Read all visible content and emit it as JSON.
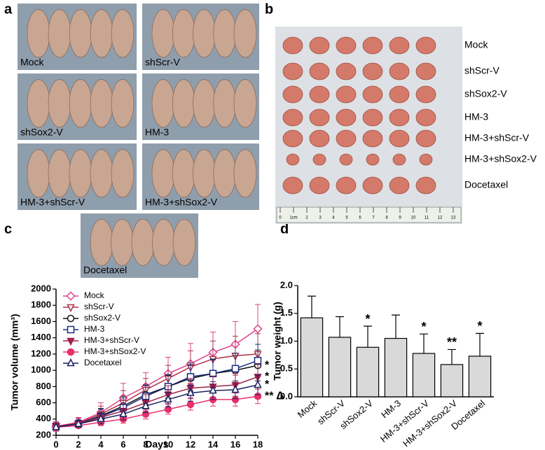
{
  "panel_labels": [
    "a",
    "b",
    "c",
    "d"
  ],
  "panel_a": {
    "groups": [
      "Mock",
      "shScr-V",
      "shSox2-V",
      "HM-3",
      "HM-3+shScr-V",
      "HM-3+shSox2-V",
      "Docetaxel"
    ]
  },
  "panel_b": {
    "groups": [
      "Mock",
      "shScr-V",
      "shSox2-V",
      "HM-3",
      "HM-3+shScr-V",
      "HM-3+shSox2-V",
      "Docetaxel"
    ],
    "ruler_labels": [
      "0",
      "1cm",
      "2",
      "3",
      "4",
      "5",
      "6",
      "7",
      "8",
      "9",
      "10",
      "11",
      "12",
      "13"
    ]
  },
  "chart_data": [
    {
      "type": "line",
      "x_label": "Days",
      "y_label": "Tumor volume (mm³)",
      "x": [
        0,
        2,
        4,
        6,
        8,
        10,
        12,
        14,
        16,
        18
      ],
      "xlim": [
        0,
        18
      ],
      "xticks": [
        0,
        2,
        4,
        6,
        8,
        10,
        12,
        14,
        16,
        18
      ],
      "ylim": [
        200,
        2000
      ],
      "yticks": [
        200,
        400,
        600,
        800,
        1000,
        1200,
        1400,
        1600,
        1800,
        2000
      ],
      "legend": "top-left",
      "series": [
        {
          "name": "Mock",
          "color": "#e0408a",
          "marker": "diamond",
          "filled": false,
          "values": [
            310,
            360,
            480,
            660,
            800,
            960,
            1080,
            1220,
            1320,
            1510
          ],
          "errors": [
            60,
            60,
            120,
            180,
            170,
            200,
            250,
            250,
            280,
            300
          ]
        },
        {
          "name": "shScr-V",
          "color": "#b0304a",
          "marker": "triangle-down",
          "filled": false,
          "values": [
            310,
            350,
            460,
            600,
            760,
            900,
            1040,
            1140,
            1180,
            1200
          ],
          "errors": [
            50,
            60,
            100,
            150,
            140,
            160,
            200,
            220,
            240,
            250
          ]
        },
        {
          "name": "shSox2-V",
          "color": "#111111",
          "marker": "circle",
          "filled": false,
          "values": [
            300,
            340,
            440,
            560,
            700,
            800,
            900,
            960,
            1000,
            1060
          ],
          "errors": [
            40,
            50,
            90,
            120,
            120,
            140,
            160,
            170,
            180,
            190
          ],
          "annotation": "*"
        },
        {
          "name": "HM-3",
          "color": "#1a2a80",
          "marker": "square",
          "filled": false,
          "values": [
            310,
            340,
            430,
            540,
            680,
            800,
            920,
            960,
            1020,
            1120
          ],
          "errors": [
            40,
            50,
            90,
            120,
            130,
            150,
            170,
            180,
            190,
            200
          ]
        },
        {
          "name": "HM-3+shScr-V",
          "color": "#a0204a",
          "marker": "triangle-down",
          "filled": true,
          "values": [
            310,
            340,
            420,
            500,
            600,
            700,
            780,
            800,
            820,
            920
          ],
          "errors": [
            40,
            40,
            70,
            90,
            100,
            110,
            120,
            130,
            140,
            150
          ],
          "annotation": "*"
        },
        {
          "name": "HM-3+shSox2-V",
          "color": "#e8306a",
          "marker": "circle",
          "filled": true,
          "values": [
            300,
            320,
            360,
            400,
            460,
            520,
            580,
            640,
            640,
            680
          ],
          "errors": [
            30,
            30,
            40,
            50,
            60,
            60,
            70,
            80,
            80,
            90
          ],
          "annotation": "** Δ"
        },
        {
          "name": "Docetaxel",
          "color": "#1a2060",
          "marker": "triangle-up",
          "filled": false,
          "values": [
            300,
            340,
            400,
            460,
            560,
            640,
            720,
            750,
            760,
            820
          ],
          "errors": [
            30,
            40,
            60,
            70,
            80,
            90,
            100,
            110,
            110,
            120
          ],
          "annotation": "*"
        }
      ]
    },
    {
      "type": "bar",
      "y_label": "Tumor weight (g)",
      "color": "#d9d9d9",
      "categories": [
        "Mock",
        "shScr-V",
        "shSox2-V",
        "HM-3",
        "HM-3+shScr-V",
        "HM-3+shSox2-V",
        "Docetaxel"
      ],
      "values": [
        1.42,
        1.07,
        0.89,
        1.05,
        0.78,
        0.58,
        0.73
      ],
      "errors": [
        0.39,
        0.37,
        0.38,
        0.42,
        0.35,
        0.27,
        0.41
      ],
      "annotations": [
        null,
        null,
        "*",
        null,
        "*",
        "**",
        "*"
      ],
      "ylim": [
        0,
        2.0
      ],
      "yticks": [
        {
          "value": 0,
          "label": "0.0"
        },
        {
          "value": 0.5,
          "label": "0.5"
        },
        {
          "value": 1.0,
          "label": "1.0"
        },
        {
          "value": 1.5,
          "label": "1.5"
        },
        {
          "value": 2.0,
          "label": "2.0"
        }
      ]
    }
  ]
}
